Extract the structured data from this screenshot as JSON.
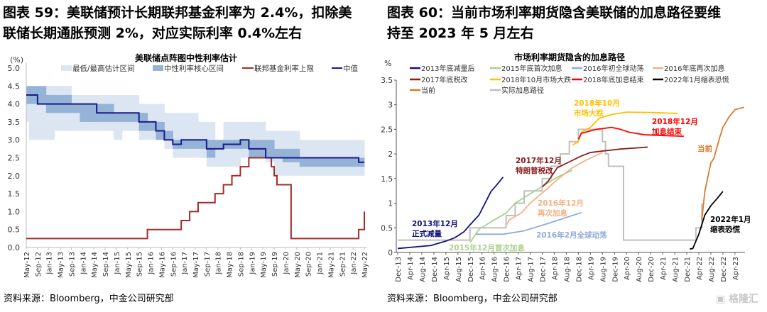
{
  "left_figure": {
    "title_line1": "图表 59：美联储预计长期联邦基金利率为 2.4%，扣除美",
    "title_line2": "联储长期通胀预测 2%，对应实际利率 0.4%左右",
    "source": "资料来源：Bloomberg，中金公司研究部"
  },
  "right_figure": {
    "title_line1": "图表 60：当前市场利率期货隐含美联储的加息路径要维",
    "title_line2": "持至 2023 年 5 月左右",
    "source": "资料来源：Bloomberg，中金公司研究部"
  },
  "watermark": "格隆汇",
  "chart_data": [
    {
      "type": "line",
      "title": "美联储点阵图中性利率估计",
      "ylabel": "(%)",
      "ylim": [
        0,
        5.0
      ],
      "yticks": [
        "0.0",
        "0.5",
        "1.0",
        "1.5",
        "2.0",
        "2.5",
        "3.0",
        "3.5",
        "4.0",
        "4.5",
        "5.0"
      ],
      "xlim": [
        "2012-05",
        "2022-05"
      ],
      "xticks": [
        "May-12",
        "Sep-12",
        "Jan-13",
        "May-13",
        "Sep-13",
        "Jan-14",
        "May-14",
        "Sep-14",
        "Jan-15",
        "May-15",
        "Sep-15",
        "Jan-16",
        "May-16",
        "Sep-16",
        "Jan-17",
        "May-17",
        "Sep-17",
        "Jan-18",
        "May-18",
        "Sep-18",
        "Jan-19",
        "May-19",
        "Sep-19",
        "Jan-20",
        "May-20",
        "Sep-20",
        "Jan-21",
        "May-21",
        "Sep-21",
        "Jan-22",
        "May-22"
      ],
      "legend": [
        "最低/最高估计区间",
        "中性利率核心区间",
        "联邦基金利率上限",
        "中值"
      ],
      "legend_placement": "top",
      "colors": {
        "minmax": "#dce6f2",
        "core": "#95b3d7",
        "fed_funds": "#a52a2a",
        "median": "#1a1a8c"
      },
      "bands": [
        {
          "start": "2012-05",
          "end": "2012-06",
          "min": 3.5,
          "max": 4.5,
          "core_low": 4.0,
          "core_high": 4.5
        },
        {
          "start": "2012-06",
          "end": "2012-12",
          "min": 3.0,
          "max": 4.5,
          "core_low": 4.0,
          "core_high": 4.5
        },
        {
          "start": "2012-12",
          "end": "2013-03",
          "min": 3.0,
          "max": 4.5,
          "core_low": 3.75,
          "core_high": 4.25
        },
        {
          "start": "2013-03",
          "end": "2013-09",
          "min": 3.25,
          "max": 4.5,
          "core_low": 3.75,
          "core_high": 4.25
        },
        {
          "start": "2013-09",
          "end": "2013-12",
          "min": 3.25,
          "max": 4.25,
          "core_low": 3.75,
          "core_high": 4.0
        },
        {
          "start": "2013-12",
          "end": "2014-12",
          "min": 3.25,
          "max": 4.25,
          "core_low": 3.5,
          "core_high": 4.0
        },
        {
          "start": "2014-12",
          "end": "2015-03",
          "min": 3.0,
          "max": 4.25,
          "core_low": 3.5,
          "core_high": 3.75
        },
        {
          "start": "2015-03",
          "end": "2015-09",
          "min": 3.25,
          "max": 4.25,
          "core_low": 3.5,
          "core_high": 3.75
        },
        {
          "start": "2015-09",
          "end": "2015-12",
          "min": 3.0,
          "max": 4.0,
          "core_low": 3.25,
          "core_high": 3.75
        },
        {
          "start": "2015-12",
          "end": "2016-03",
          "min": 3.0,
          "max": 4.0,
          "core_low": 3.25,
          "core_high": 3.5
        },
        {
          "start": "2016-03",
          "end": "2016-06",
          "min": 3.0,
          "max": 4.0,
          "core_low": 3.0,
          "core_high": 3.5
        },
        {
          "start": "2016-06",
          "end": "2016-09",
          "min": 2.75,
          "max": 3.75,
          "core_low": 3.0,
          "core_high": 3.25
        },
        {
          "start": "2016-09",
          "end": "2017-06",
          "min": 2.5,
          "max": 3.75,
          "core_low": 2.75,
          "core_high": 3.0
        },
        {
          "start": "2017-06",
          "end": "2017-09",
          "min": 2.5,
          "max": 3.5,
          "core_low": 2.75,
          "core_high": 3.0
        },
        {
          "start": "2017-09",
          "end": "2017-12",
          "min": 2.25,
          "max": 3.5,
          "core_low": 2.5,
          "core_high": 3.0
        },
        {
          "start": "2017-12",
          "end": "2018-03",
          "min": 2.25,
          "max": 3.0,
          "core_low": 2.75,
          "core_high": 3.0
        },
        {
          "start": "2018-03",
          "end": "2018-09",
          "min": 2.25,
          "max": 3.5,
          "core_low": 2.75,
          "core_high": 3.0
        },
        {
          "start": "2018-09",
          "end": "2018-12",
          "min": 2.5,
          "max": 3.5,
          "core_low": 2.75,
          "core_high": 3.0
        },
        {
          "start": "2018-12",
          "end": "2019-06",
          "min": 2.5,
          "max": 3.5,
          "core_low": 2.5,
          "core_high": 3.0
        },
        {
          "start": "2019-06",
          "end": "2019-09",
          "min": 2.375,
          "max": 3.25,
          "core_low": 2.5,
          "core_high": 3.0
        },
        {
          "start": "2019-09",
          "end": "2019-12",
          "min": 2.0,
          "max": 3.25,
          "core_low": 2.5,
          "core_high": 2.75
        },
        {
          "start": "2019-12",
          "end": "2020-06",
          "min": 2.0,
          "max": 3.25,
          "core_low": 2.375,
          "core_high": 2.75
        },
        {
          "start": "2020-06",
          "end": "2022-05",
          "min": 2.0,
          "max": 3.0,
          "core_low": 2.25,
          "core_high": 2.5
        }
      ],
      "fed_funds_upper": [
        [
          "2012-05",
          0.25
        ],
        [
          "2015-12",
          0.5
        ],
        [
          "2016-12",
          0.75
        ],
        [
          "2017-03",
          1.0
        ],
        [
          "2017-06",
          1.25
        ],
        [
          "2017-12",
          1.5
        ],
        [
          "2018-03",
          1.75
        ],
        [
          "2018-06",
          2.0
        ],
        [
          "2018-09",
          2.25
        ],
        [
          "2018-12",
          2.5
        ],
        [
          "2019-08",
          2.25
        ],
        [
          "2019-09",
          2.0
        ],
        [
          "2019-10",
          1.75
        ],
        [
          "2020-03",
          1.25
        ],
        [
          "2020-03",
          0.25
        ],
        [
          "2022-03",
          0.5
        ],
        [
          "2022-05",
          1.0
        ]
      ],
      "median": [
        [
          "2012-05",
          4.25
        ],
        [
          "2012-09",
          4.0
        ],
        [
          "2014-06",
          3.75
        ],
        [
          "2015-09",
          3.5
        ],
        [
          "2016-03",
          3.25
        ],
        [
          "2016-06",
          3.0
        ],
        [
          "2016-09",
          2.875
        ],
        [
          "2016-12",
          3.0
        ],
        [
          "2017-09",
          2.75
        ],
        [
          "2018-03",
          2.875
        ],
        [
          "2018-09",
          3.0
        ],
        [
          "2018-12",
          2.75
        ],
        [
          "2019-06",
          2.5
        ],
        [
          "2022-03",
          2.375
        ],
        [
          "2022-05",
          2.375
        ]
      ]
    },
    {
      "type": "line",
      "title": "市场利率期货隐含的加息路径",
      "ylabel": "%",
      "ylim": [
        0,
        3.5
      ],
      "yticks": [
        "0",
        "0.5",
        "1",
        "1.5",
        "2",
        "2.5",
        "3",
        "3.5"
      ],
      "xlim": [
        "2013-12",
        "2023-07"
      ],
      "xticks": [
        "Dec-13",
        "Apr-14",
        "Aug-14",
        "Dec-14",
        "Apr-15",
        "Aug-15",
        "Dec-15",
        "Apr-16",
        "Aug-16",
        "Dec-16",
        "Apr-17",
        "Aug-17",
        "Dec-17",
        "Apr-18",
        "Aug-18",
        "Dec-18",
        "Apr-19",
        "Aug-19",
        "Dec-19",
        "Apr-20",
        "Aug-20",
        "Dec-20",
        "Apr-21",
        "Aug-21",
        "Dec-21",
        "Apr-22",
        "Aug-22",
        "Dec-22",
        "Apr-23"
      ],
      "legend_placement": "top",
      "series": [
        {
          "name": "2013年底减量后",
          "color": "#12127f",
          "points": [
            [
              "2013-12",
              0.08
            ],
            [
              "2014-11",
              0.14
            ],
            [
              "2015-04",
              0.23
            ],
            [
              "2015-07",
              0.3
            ],
            [
              "2015-10",
              0.42
            ],
            [
              "2015-12",
              0.56
            ],
            [
              "2016-03",
              0.76
            ],
            [
              "2016-05",
              1.0
            ],
            [
              "2016-07",
              1.24
            ],
            [
              "2016-09",
              1.38
            ],
            [
              "2016-11",
              1.53
            ]
          ]
        },
        {
          "name": "2015年底首次加息",
          "color": "#a9d18e",
          "points": [
            [
              "2015-12",
              0.2
            ],
            [
              "2016-03",
              0.47
            ],
            [
              "2016-08",
              0.66
            ],
            [
              "2016-12",
              0.8
            ],
            [
              "2017-03",
              1.0
            ],
            [
              "2017-08",
              1.19
            ],
            [
              "2018-01",
              1.38
            ],
            [
              "2018-05",
              1.53
            ],
            [
              "2018-10",
              1.67
            ]
          ]
        },
        {
          "name": "2016年初全球动荡",
          "color": "#8faadc",
          "points": [
            [
              "2016-02",
              0.37
            ],
            [
              "2016-11",
              0.37
            ],
            [
              "2017-06",
              0.44
            ],
            [
              "2018-02",
              0.59
            ],
            [
              "2018-09",
              0.73
            ],
            [
              "2019-01",
              0.81
            ]
          ]
        },
        {
          "name": "2016年底再次加息",
          "color": "#f4b183",
          "points": [
            [
              "2016-12",
              0.54
            ],
            [
              "2017-01",
              0.66
            ],
            [
              "2017-05",
              0.8
            ],
            [
              "2017-08",
              1.0
            ],
            [
              "2018-01",
              1.26
            ],
            [
              "2018-05",
              1.48
            ],
            [
              "2018-10",
              1.72
            ],
            [
              "2019-03",
              1.89
            ],
            [
              "2019-08",
              2.03
            ]
          ]
        },
        {
          "name": "2017年底税改",
          "color": "#8b1a1a",
          "points": [
            [
              "2017-12",
              1.33
            ],
            [
              "2018-02",
              1.45
            ],
            [
              "2018-05",
              1.72
            ],
            [
              "2018-09",
              1.84
            ],
            [
              "2019-01",
              1.96
            ],
            [
              "2019-04",
              2.03
            ],
            [
              "2019-08",
              2.06
            ],
            [
              "2020-02",
              2.1
            ],
            [
              "2020-11",
              2.14
            ]
          ]
        },
        {
          "name": "2018年10月市场大跌",
          "color": "#ffc000",
          "points": [
            [
              "2018-10",
              2.18
            ],
            [
              "2018-12",
              2.25
            ],
            [
              "2019-01",
              2.44
            ],
            [
              "2019-04",
              2.54
            ],
            [
              "2019-07",
              2.73
            ],
            [
              "2019-11",
              2.8
            ],
            [
              "2020-04",
              2.85
            ],
            [
              "2021-02",
              2.84
            ],
            [
              "2021-09",
              2.82
            ]
          ]
        },
        {
          "name": "2018年底加息结束",
          "color": "#ff0000",
          "points": [
            [
              "2018-12",
              2.3
            ],
            [
              "2019-01",
              2.42
            ],
            [
              "2019-06",
              2.5
            ],
            [
              "2019-11",
              2.54
            ],
            [
              "2020-02",
              2.5
            ],
            [
              "2020-05",
              2.44
            ],
            [
              "2020-10",
              2.39
            ],
            [
              "2021-06",
              2.37
            ],
            [
              "2021-11",
              2.36
            ]
          ]
        },
        {
          "name": "2022年1月缩表恐慌",
          "color": "#000000",
          "points": [
            [
              "2022-01",
              0.07
            ],
            [
              "2022-02",
              0.08
            ],
            [
              "2022-04",
              0.37
            ],
            [
              "2022-06",
              0.76
            ],
            [
              "2022-08",
              0.95
            ],
            [
              "2022-10",
              1.09
            ],
            [
              "2022-12",
              1.24
            ]
          ]
        },
        {
          "name": "当前",
          "color": "#d9782d",
          "points": [
            [
              "2022-05",
              0.66
            ],
            [
              "2022-06",
              1.24
            ],
            [
              "2022-08",
              1.82
            ],
            [
              "2022-09",
              1.91
            ],
            [
              "2022-11",
              2.35
            ],
            [
              "2022-12",
              2.54
            ],
            [
              "2023-02",
              2.75
            ],
            [
              "2023-04",
              2.9
            ],
            [
              "2023-07",
              2.95
            ]
          ]
        },
        {
          "name": "实际加息路径",
          "color": "#bfbfbf",
          "step": true,
          "points": [
            [
              "2013-12",
              0.25
            ],
            [
              "2015-12",
              0.5
            ],
            [
              "2016-12",
              0.75
            ],
            [
              "2017-03",
              1.0
            ],
            [
              "2017-06",
              1.25
            ],
            [
              "2017-12",
              1.5
            ],
            [
              "2018-03",
              1.75
            ],
            [
              "2018-06",
              2.0
            ],
            [
              "2018-09",
              2.25
            ],
            [
              "2018-12",
              2.5
            ],
            [
              "2019-08",
              2.25
            ],
            [
              "2019-09",
              2.0
            ],
            [
              "2019-10",
              1.75
            ],
            [
              "2020-03",
              0.25
            ],
            [
              "2022-03",
              0.5
            ],
            [
              "2022-05",
              1.0
            ]
          ]
        }
      ],
      "annotations": [
        {
          "lines": [
            "2013年12月",
            "正式减量"
          ],
          "color": "#12127f"
        },
        {
          "lines": [
            "2015年12月首次加息"
          ],
          "color": "#a9d18e"
        },
        {
          "lines": [
            "2016年2月全球动荡"
          ],
          "color": "#8faadc"
        },
        {
          "lines": [
            "2016年12月",
            "再次加息"
          ],
          "color": "#f4b183"
        },
        {
          "lines": [
            "2017年12月",
            "特朗普税改"
          ],
          "color": "#8b1a1a"
        },
        {
          "lines": [
            "2018年10月",
            "市场大跌"
          ],
          "color": "#ffc000"
        },
        {
          "lines": [
            "2018年12月",
            "加息结束"
          ],
          "color": "#ff0000"
        },
        {
          "lines": [
            "当前"
          ],
          "color": "#d9782d"
        },
        {
          "lines": [
            "2022年1月",
            "缩表恐慌"
          ],
          "color": "#000000"
        }
      ]
    }
  ]
}
